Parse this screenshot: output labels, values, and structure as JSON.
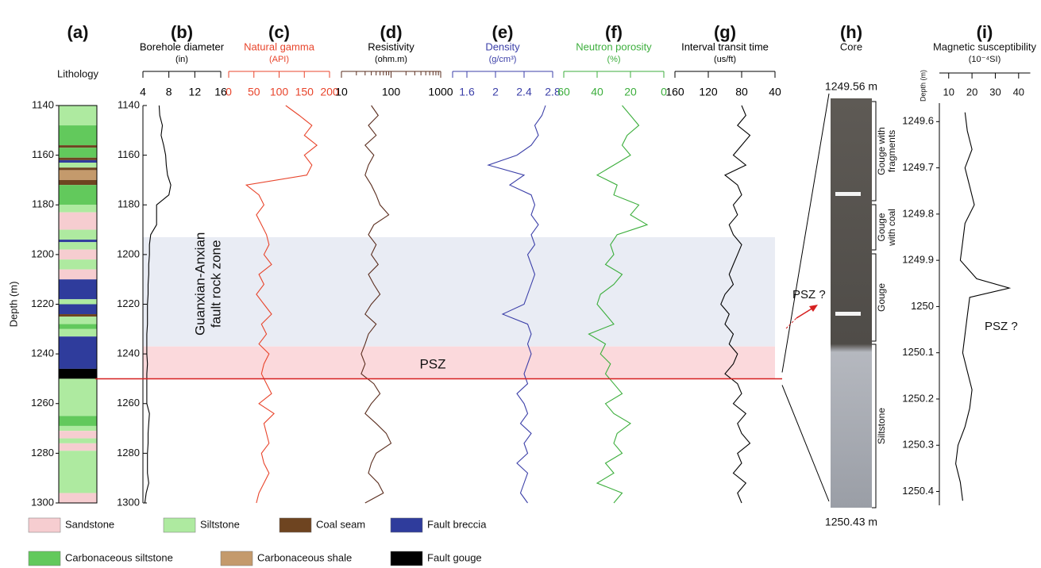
{
  "depth_axis": {
    "label": "Depth (m)",
    "ylim": [
      1140,
      1300
    ],
    "yticks": [
      1140,
      1160,
      1180,
      1200,
      1220,
      1240,
      1260,
      1280,
      1300
    ]
  },
  "zones": [
    {
      "label": [
        "Guanxian-Anxian",
        "fault rock zone"
      ],
      "top": 1193,
      "base": 1237,
      "color": "#e9ecf4"
    },
    {
      "label": [
        "PSZ"
      ],
      "top": 1237,
      "base": 1250,
      "color": "#fbd9dc"
    }
  ],
  "psz_line": 1250,
  "chart_data": [
    {
      "type": "lithology",
      "panel": "(a)",
      "title": "Lithology",
      "units": [
        {
          "name": "Sandstone",
          "color": "#f6cdd0"
        },
        {
          "name": "Siltstone",
          "color": "#aeeaa0"
        },
        {
          "name": "Coal seam",
          "color": "#6e4420"
        },
        {
          "name": "Fault breccia",
          "color": "#2f3c9c"
        },
        {
          "name": "Carbonaceous siltstone",
          "color": "#62c95c"
        },
        {
          "name": "Carbonaceous shale",
          "color": "#c49a6c"
        },
        {
          "name": "Fault gouge",
          "color": "#000000"
        }
      ],
      "intervals": [
        [
          1140,
          1148,
          1
        ],
        [
          1148,
          1156,
          4
        ],
        [
          1156,
          1157,
          2
        ],
        [
          1157,
          1161,
          4
        ],
        [
          1161,
          1162,
          2
        ],
        [
          1162,
          1163,
          3
        ],
        [
          1163,
          1165,
          1
        ],
        [
          1165,
          1166,
          2
        ],
        [
          1166,
          1170,
          5
        ],
        [
          1170,
          1172,
          2
        ],
        [
          1172,
          1180,
          4
        ],
        [
          1180,
          1183,
          1
        ],
        [
          1183,
          1190,
          0
        ],
        [
          1190,
          1194,
          1
        ],
        [
          1194,
          1195,
          3
        ],
        [
          1195,
          1198,
          1
        ],
        [
          1198,
          1202,
          0
        ],
        [
          1202,
          1206,
          1
        ],
        [
          1206,
          1210,
          0
        ],
        [
          1210,
          1218,
          3
        ],
        [
          1218,
          1220,
          1
        ],
        [
          1220,
          1224,
          3
        ],
        [
          1224,
          1225,
          2
        ],
        [
          1225,
          1228,
          1
        ],
        [
          1228,
          1230,
          4
        ],
        [
          1230,
          1233,
          1
        ],
        [
          1233,
          1246,
          3
        ],
        [
          1246,
          1250,
          6
        ],
        [
          1250,
          1265,
          1
        ],
        [
          1265,
          1269,
          4
        ],
        [
          1269,
          1271,
          1
        ],
        [
          1271,
          1274,
          0
        ],
        [
          1274,
          1276,
          1
        ],
        [
          1276,
          1279,
          0
        ],
        [
          1279,
          1296,
          1
        ],
        [
          1296,
          1300,
          0
        ]
      ]
    },
    {
      "type": "well-log",
      "depth": [
        1140,
        1144,
        1148,
        1152,
        1156,
        1160,
        1164,
        1168,
        1172,
        1176,
        1180,
        1184,
        1188,
        1192,
        1196,
        1200,
        1204,
        1208,
        1212,
        1216,
        1220,
        1224,
        1228,
        1232,
        1236,
        1240,
        1244,
        1248,
        1252,
        1256,
        1260,
        1264,
        1268,
        1272,
        1276,
        1280,
        1284,
        1288,
        1292,
        1296,
        1300
      ],
      "series": [
        {
          "panel": "(b)",
          "name": "Borehole diameter",
          "unit": "(in)",
          "color": "#000000",
          "title_color": "#000000",
          "xlim": [
            4,
            16
          ],
          "xticks": [
            4,
            8,
            12,
            16
          ],
          "values": [
            6.5,
            6.6,
            7.0,
            6.8,
            7.2,
            7.5,
            7.6,
            7.8,
            8.3,
            8.0,
            6.1,
            6.1,
            6.1,
            5.2,
            5.0,
            5.0,
            4.9,
            4.9,
            4.8,
            4.8,
            4.7,
            4.7,
            4.7,
            4.6,
            4.6,
            4.6,
            4.7,
            4.6,
            4.6,
            4.6,
            4.6,
            5.0,
            4.9,
            4.8,
            4.8,
            4.7,
            4.7,
            4.7,
            4.9,
            4.5,
            4.3
          ]
        },
        {
          "panel": "(c)",
          "name": "Natural gamma",
          "unit": "(API)",
          "color": "#e8452c",
          "title_color": "#e8452c",
          "xlim": [
            0,
            200
          ],
          "xticks": [
            0,
            50,
            100,
            150,
            200
          ],
          "values": [
            113,
            140,
            165,
            150,
            175,
            150,
            165,
            155,
            35,
            60,
            70,
            55,
            65,
            75,
            80,
            70,
            85,
            60,
            70,
            55,
            70,
            85,
            65,
            75,
            60,
            80,
            70,
            65,
            75,
            85,
            60,
            90,
            70,
            75,
            80,
            65,
            70,
            80,
            70,
            60,
            55
          ]
        },
        {
          "panel": "(d)",
          "name": "Resistivity",
          "unit": "(ohm.m)",
          "color": "#5a2d1e",
          "title_color": "#000000",
          "xlim": [
            10,
            1000
          ],
          "xticks": [
            10,
            100,
            1000
          ],
          "log_scale": true,
          "xminor": [
            20,
            30,
            40,
            50,
            60,
            70,
            80,
            90,
            200,
            300,
            400,
            500,
            600,
            700,
            800,
            900
          ],
          "values": [
            40,
            55,
            35,
            50,
            30,
            45,
            35,
            30,
            40,
            50,
            60,
            90,
            45,
            35,
            50,
            40,
            55,
            35,
            45,
            60,
            40,
            30,
            50,
            35,
            30,
            25,
            30,
            25,
            45,
            60,
            40,
            30,
            50,
            80,
            100,
            50,
            40,
            35,
            55,
            70,
            30
          ]
        },
        {
          "panel": "(e)",
          "name": "Density",
          "unit": "(g/cm³)",
          "color": "#3b3fa8",
          "title_color": "#3b3fa8",
          "xlim": [
            1.4,
            2.8
          ],
          "xticks": [
            1.6,
            2,
            2.4,
            2.8
          ],
          "values": [
            2.7,
            2.65,
            2.55,
            2.6,
            2.5,
            2.3,
            1.9,
            2.4,
            2.2,
            2.5,
            2.55,
            2.5,
            2.6,
            2.5,
            2.55,
            2.45,
            2.5,
            2.55,
            2.5,
            2.45,
            2.4,
            2.1,
            2.45,
            2.5,
            2.45,
            2.5,
            2.45,
            2.4,
            2.45,
            2.3,
            2.4,
            2.45,
            2.35,
            2.5,
            2.4,
            2.45,
            2.3,
            2.45,
            2.4,
            2.35,
            2.45
          ]
        },
        {
          "panel": "(f)",
          "name": "Neutron porosity",
          "unit": "(%)",
          "color": "#3cae3c",
          "title_color": "#3cae3c",
          "xlim": [
            60,
            0
          ],
          "xticks": [
            60,
            40,
            20,
            0
          ],
          "values": [
            25,
            20,
            15,
            22,
            25,
            20,
            30,
            40,
            28,
            30,
            15,
            20,
            10,
            28,
            32,
            30,
            35,
            25,
            30,
            38,
            40,
            35,
            30,
            45,
            35,
            38,
            32,
            35,
            30,
            25,
            35,
            30,
            20,
            28,
            30,
            25,
            35,
            30,
            40,
            25,
            30
          ]
        },
        {
          "panel": "(g)",
          "name": "Interval transit time",
          "unit": "(us/ft)",
          "color": "#000000",
          "title_color": "#000000",
          "xlim": [
            160,
            40
          ],
          "xticks": [
            160,
            120,
            80,
            40
          ],
          "values": [
            80,
            75,
            85,
            70,
            80,
            90,
            75,
            100,
            85,
            80,
            90,
            85,
            95,
            90,
            80,
            85,
            90,
            95,
            90,
            100,
            105,
            95,
            100,
            90,
            95,
            85,
            90,
            100,
            85,
            80,
            90,
            75,
            85,
            80,
            70,
            85,
            80,
            90,
            75,
            85,
            80
          ]
        }
      ]
    },
    {
      "type": "core-log",
      "panel": "(i)",
      "title": "Magnetic susceptibility",
      "unit": "(10⁻⁴SI)",
      "ylabel": "Depth (m)",
      "color": "#000000",
      "xlim": [
        6,
        45
      ],
      "xticks": [
        10,
        20,
        30,
        40
      ],
      "ylim": [
        1249.56,
        1250.43
      ],
      "yticks": [
        1249.6,
        1249.7,
        1249.8,
        1249.9,
        1250,
        1250.1,
        1250.2,
        1250.3,
        1250.4
      ],
      "depth": [
        1249.58,
        1249.62,
        1249.66,
        1249.7,
        1249.74,
        1249.78,
        1249.82,
        1249.86,
        1249.9,
        1249.94,
        1249.96,
        1249.98,
        1250.02,
        1250.06,
        1250.1,
        1250.14,
        1250.18,
        1250.22,
        1250.26,
        1250.3,
        1250.34,
        1250.38,
        1250.42
      ],
      "values": [
        17,
        18,
        20,
        17,
        19,
        21,
        17,
        16,
        15,
        22,
        36,
        19,
        18,
        17,
        16,
        18,
        20,
        19,
        17,
        14,
        13,
        15,
        16
      ],
      "annotation": "PSZ ?"
    }
  ],
  "core": {
    "panel": "(h)",
    "title": "Core",
    "top": "1249.56 m",
    "bottom": "1250.43 m",
    "annotation": "PSZ ?",
    "units": [
      [
        "Gouge with",
        "fragments"
      ],
      [
        "Gouge",
        "with coal"
      ],
      [
        "Gouge"
      ],
      [
        "Siltstone"
      ]
    ]
  }
}
